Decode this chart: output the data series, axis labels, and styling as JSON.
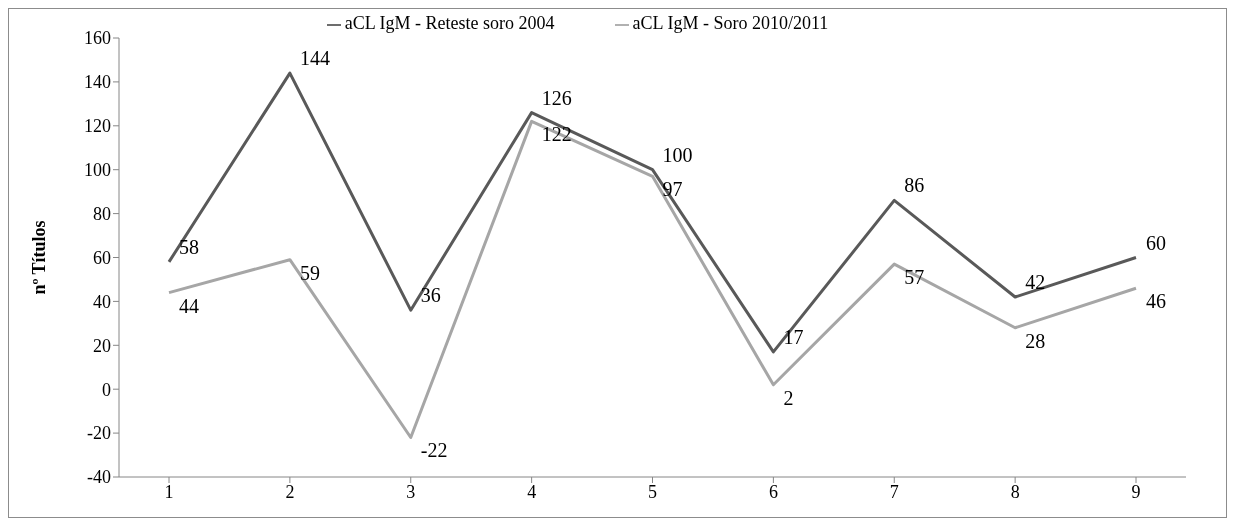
{
  "chart_data": {
    "type": "line",
    "ylabel": "nº Títulos",
    "categories": [
      "1",
      "2",
      "3",
      "4",
      "5",
      "6",
      "7",
      "8",
      "9"
    ],
    "series": [
      {
        "name": "aCL IgM - Reteste soro 2004",
        "color": "#595959",
        "values": [
          58,
          144,
          36,
          126,
          100,
          17,
          86,
          42,
          60
        ]
      },
      {
        "name": "aCL IgM - Soro 2010/2011",
        "color": "#a6a6a6",
        "values": [
          44,
          59,
          -22,
          122,
          97,
          2,
          57,
          28,
          46
        ]
      }
    ],
    "ylim": [
      -40,
      160
    ],
    "yticks": [
      -40,
      -20,
      0,
      20,
      40,
      60,
      80,
      100,
      120,
      140,
      160
    ],
    "grid": false,
    "legend": "top",
    "marker": "none",
    "line_style": "solid",
    "data_labels": true
  }
}
